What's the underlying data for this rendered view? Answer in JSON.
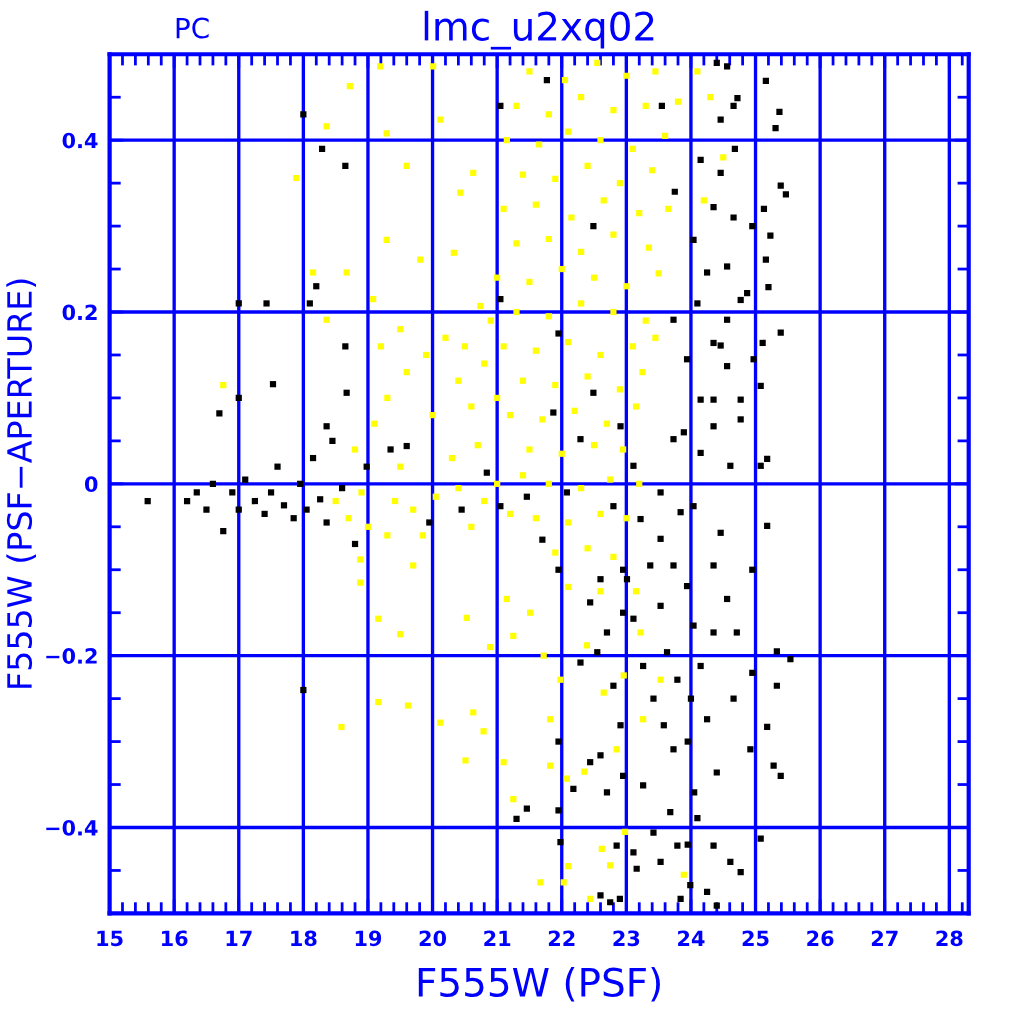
{
  "chart_data": {
    "type": "scatter",
    "title": "lmc_u2xq02",
    "xlabel": "F555W (PSF)",
    "ylabel": "F555W (PSF−APERTURE)",
    "annotations": [
      "PC"
    ],
    "marker": "square",
    "grid": true,
    "xlim": [
      15,
      28.3
    ],
    "ylim": [
      -0.5,
      0.5
    ],
    "xticks": [
      15,
      {
        "value": 15.2,
        "label": null
      },
      {
        "value": 15.4,
        "label": null
      },
      {
        "value": 15.6,
        "label": null
      },
      {
        "value": 15.8,
        "label": null
      },
      16,
      {
        "value": 16.2,
        "label": null
      },
      {
        "value": 16.4,
        "label": null
      },
      {
        "value": 16.6,
        "label": null
      },
      {
        "value": 16.8,
        "label": null
      },
      17,
      {
        "value": 17.2,
        "label": null
      },
      {
        "value": 17.4,
        "label": null
      },
      {
        "value": 17.6,
        "label": null
      },
      {
        "value": 17.8,
        "label": null
      },
      18,
      {
        "value": 18.2,
        "label": null
      },
      {
        "value": 18.4,
        "label": null
      },
      {
        "value": 18.6,
        "label": null
      },
      {
        "value": 18.8,
        "label": null
      },
      19,
      {
        "value": 19.2,
        "label": null
      },
      {
        "value": 19.4,
        "label": null
      },
      {
        "value": 19.6,
        "label": null
      },
      {
        "value": 19.8,
        "label": null
      },
      20,
      {
        "value": 20.2,
        "label": null
      },
      {
        "value": 20.4,
        "label": null
      },
      {
        "value": 20.6,
        "label": null
      },
      {
        "value": 20.8,
        "label": null
      },
      21,
      {
        "value": 21.2,
        "label": null
      },
      {
        "value": 21.4,
        "label": null
      },
      {
        "value": 21.6,
        "label": null
      },
      {
        "value": 21.8,
        "label": null
      },
      22,
      {
        "value": 22.2,
        "label": null
      },
      {
        "value": 22.4,
        "label": null
      },
      {
        "value": 22.6,
        "label": null
      },
      {
        "value": 22.8,
        "label": null
      },
      23,
      {
        "value": 23.2,
        "label": null
      },
      {
        "value": 23.4,
        "label": null
      },
      {
        "value": 23.6,
        "label": null
      },
      {
        "value": 23.8,
        "label": null
      },
      24,
      {
        "value": 24.2,
        "label": null
      },
      {
        "value": 24.4,
        "label": null
      },
      {
        "value": 24.6,
        "label": null
      },
      {
        "value": 24.8,
        "label": null
      },
      25,
      {
        "value": 25.2,
        "label": null
      },
      {
        "value": 25.4,
        "label": null
      },
      {
        "value": 25.6,
        "label": null
      },
      {
        "value": 25.8,
        "label": null
      },
      26,
      {
        "value": 26.2,
        "label": null
      },
      {
        "value": 26.4,
        "label": null
      },
      {
        "value": 26.6,
        "label": null
      },
      {
        "value": 26.8,
        "label": null
      },
      27,
      {
        "value": 27.2,
        "label": null
      },
      {
        "value": 27.4,
        "label": null
      },
      {
        "value": 27.6,
        "label": null
      },
      {
        "value": 27.8,
        "label": null
      },
      28,
      {
        "value": 28.2,
        "label": null
      }
    ],
    "yticks": [
      {
        "value": -0.45,
        "label": null
      },
      {
        "value": -0.4,
        "label": "−0.4"
      },
      {
        "value": -0.35,
        "label": null
      },
      {
        "value": -0.3,
        "label": null
      },
      {
        "value": -0.25,
        "label": null
      },
      {
        "value": -0.2,
        "label": "−0.2"
      },
      {
        "value": -0.15,
        "label": null
      },
      {
        "value": -0.1,
        "label": null
      },
      {
        "value": -0.05,
        "label": null
      },
      0,
      {
        "value": 0.05,
        "label": null
      },
      {
        "value": 0.1,
        "label": null
      },
      {
        "value": 0.15,
        "label": null
      },
      0.2,
      {
        "value": 0.25,
        "label": null
      },
      {
        "value": 0.3,
        "label": null
      },
      {
        "value": 0.35,
        "label": null
      },
      0.4,
      {
        "value": 0.45,
        "label": null
      }
    ],
    "series": [
      {
        "color": "#ffff00",
        "x": [
          18.5,
          18.7,
          18.9,
          19.0,
          19.3,
          19.42,
          19.7,
          19.85,
          20.05,
          20.4,
          20.6,
          20.8,
          21.0,
          21.2,
          21.4,
          19.5,
          20.3,
          20.7,
          18.8,
          19.1,
          19.3,
          19.6,
          19.9,
          20.2,
          20.5,
          20.8,
          19.5,
          20.0,
          20.6,
          19.2,
          20.9,
          20.4,
          21.0,
          18.36,
          18.72,
          19.29,
          19.6,
          20.12,
          20.43,
          20.33,
          19.81,
          19.29,
          19.08,
          18.67,
          18.36,
          20.74,
          20.63,
          20.01,
          19.19,
          18.15,
          17.89,
          16.76,
          21.5,
          22.05,
          22.55,
          23.0,
          23.45,
          24.1,
          21.3,
          21.8,
          22.3,
          22.8,
          23.3,
          23.8,
          24.3,
          21.15,
          21.65,
          22.1,
          22.6,
          23.1,
          23.6,
          21.4,
          21.9,
          22.4,
          22.9,
          23.4,
          24.5,
          21.1,
          21.6,
          22.15,
          22.65,
          23.2,
          23.65,
          24.2,
          21.3,
          21.8,
          22.3,
          22.8,
          23.35,
          21.0,
          21.5,
          22.0,
          22.5,
          23.0,
          23.5,
          21.3,
          21.8,
          22.3,
          22.8,
          23.3,
          21.1,
          21.6,
          22.1,
          22.6,
          23.1,
          23.45,
          21.4,
          21.9,
          22.4,
          22.9,
          23.25,
          21.2,
          21.7,
          22.2,
          22.7,
          23.15,
          21.5,
          22.0,
          22.5,
          22.95,
          21.8,
          22.3,
          22.75,
          23.2,
          21.6,
          22.1,
          22.6,
          23.0,
          21.9,
          22.4,
          22.8,
          22.1,
          22.6,
          23.15,
          22.03,
          22.1,
          22.62,
          22.75,
          22.44,
          23.89,
          21.67,
          22.98,
          22.35,
          22.85,
          22.08,
          21.82,
          21.98,
          21.82,
          22.65,
          22.96,
          23.26,
          22.39,
          23.22,
          23.53,
          21.1,
          21.25,
          21.51,
          21.72,
          18.59,
          19.16,
          19.62,
          20.12,
          20.63,
          20.79,
          20.51,
          19.5,
          19.16,
          18.88,
          20.53,
          20.89,
          21.15,
          21.25,
          18.88,
          19.7
        ],
        "values": [
          -0.02,
          -0.04,
          -0.01,
          -0.05,
          -0.06,
          -0.02,
          -0.03,
          -0.06,
          -0.015,
          -0.005,
          -0.05,
          -0.02,
          0.0,
          -0.035,
          0.01,
          0.02,
          0.03,
          0.045,
          0.04,
          0.07,
          0.1,
          0.13,
          0.15,
          0.17,
          0.16,
          0.14,
          0.18,
          0.08,
          0.09,
          0.16,
          0.19,
          0.12,
          0.1,
          0.416,
          0.463,
          0.408,
          0.37,
          0.424,
          0.339,
          0.269,
          0.261,
          0.284,
          0.215,
          0.246,
          0.191,
          0.207,
          0.362,
          0.486,
          0.486,
          0.246,
          0.356,
          0.115,
          0.48,
          0.47,
          0.49,
          0.475,
          0.48,
          0.48,
          0.44,
          0.43,
          0.45,
          0.435,
          0.44,
          0.445,
          0.45,
          0.4,
          0.395,
          0.41,
          0.4,
          0.39,
          0.405,
          0.36,
          0.355,
          0.37,
          0.35,
          0.365,
          0.38,
          0.32,
          0.325,
          0.31,
          0.33,
          0.315,
          0.32,
          0.33,
          0.28,
          0.285,
          0.27,
          0.29,
          0.275,
          0.24,
          0.235,
          0.25,
          0.24,
          0.23,
          0.245,
          0.2,
          0.195,
          0.21,
          0.2,
          0.19,
          0.16,
          0.155,
          0.165,
          0.15,
          0.16,
          0.17,
          0.12,
          0.115,
          0.125,
          0.11,
          0.13,
          0.08,
          0.075,
          0.085,
          0.07,
          0.09,
          0.04,
          0.035,
          0.045,
          0.04,
          0.0,
          -0.005,
          0.005,
          0.0,
          -0.04,
          -0.045,
          -0.035,
          -0.04,
          -0.08,
          -0.075,
          -0.085,
          -0.12,
          -0.125,
          -0.125,
          -0.464,
          -0.445,
          -0.425,
          -0.444,
          -0.483,
          -0.455,
          -0.464,
          -0.405,
          -0.335,
          -0.309,
          -0.343,
          -0.328,
          -0.228,
          -0.274,
          -0.243,
          -0.223,
          -0.274,
          -0.188,
          -0.173,
          -0.228,
          -0.324,
          -0.177,
          -0.15,
          -0.2,
          -0.283,
          -0.254,
          -0.258,
          -0.278,
          -0.266,
          -0.288,
          -0.322,
          -0.175,
          -0.157,
          -0.115,
          -0.156,
          -0.19,
          -0.134,
          -0.367,
          -0.088,
          -0.095
        ]
      },
      {
        "color": "#000000",
        "x": [
          15.59,
          16.2,
          16.35,
          16.5,
          16.6,
          16.76,
          16.9,
          17.0,
          17.1,
          17.25,
          17.4,
          17.5,
          17.6,
          17.7,
          17.85,
          17.95,
          18.05,
          18.15,
          18.26,
          18.36,
          18.6,
          18.8,
          18.98,
          18.45,
          18.36,
          18.67,
          16.7,
          17.0,
          17.53,
          17.43,
          17.0,
          18.0,
          18.29,
          18.65,
          18.1,
          18.2,
          18.65,
          18.0,
          19.35,
          19.6,
          19.95,
          20.45,
          20.84,
          21.05,
          21.46,
          21.7,
          22.08,
          22.29,
          22.49,
          21.87,
          21.05,
          21.05,
          21.77,
          22.49,
          21.95,
          24.04,
          24.15,
          24.35,
          23.73,
          23.53,
          23.22,
          23.11,
          23.94,
          24.25,
          24.46,
          24.56,
          23.73,
          24.04,
          24.46,
          24.15,
          24.66,
          24.35,
          22.8,
          22.91,
          25.18,
          25.08,
          24.77,
          24.97,
          24.87,
          25.08,
          25.16,
          25.37,
          25.31,
          25.39,
          25.47,
          25.13,
          25.23,
          25.16,
          25.2,
          25.39,
          25.11,
          25.18,
          24.56,
          24.72,
          24.4,
          24.46,
          24.68,
          24.66,
          24.56,
          24.77,
          24.35,
          24.56,
          24.77,
          24.35,
          24.61,
          24.1,
          24.15,
          23.89,
          23.75,
          23.55,
          25.39,
          25.28,
          25.54,
          25.33,
          25.33,
          25.18,
          25.08,
          24.92,
          24.77,
          24.61,
          24.66,
          24.71,
          24.56,
          24.35,
          24.46,
          24.25,
          24.4,
          24.35,
          24.25,
          24.4,
          24.1,
          24.05,
          23.84,
          23.99,
          23.79,
          23.68,
          23.53,
          23.42,
          23.26,
          23.16,
          23.11,
          22.9,
          22.75,
          22.6,
          22.6,
          22.44,
          22.7,
          22.85,
          22.18,
          21.98,
          21.46,
          21.3,
          22.29,
          22.55,
          22.7,
          22.44,
          22.6,
          22.95,
          23.11,
          23.26,
          23.42,
          23.58,
          23.73,
          23.79,
          23.63,
          23.53,
          23.73,
          23.94,
          24.04,
          24.15,
          24.0,
          24.35,
          23.53,
          23.01,
          23.37,
          23.84,
          22.8,
          22.91,
          21.95,
          21.95,
          21.95,
          22.95,
          22.95,
          23.95,
          23.95,
          24.95,
          24.95,
          24.95
        ],
        "values": [
          -0.02,
          -0.02,
          -0.01,
          -0.03,
          0.0,
          -0.055,
          -0.01,
          -0.03,
          0.005,
          -0.02,
          -0.035,
          -0.01,
          0.02,
          -0.025,
          -0.04,
          0.0,
          -0.03,
          0.03,
          -0.018,
          -0.045,
          -0.005,
          -0.07,
          0.02,
          0.05,
          0.067,
          0.106,
          0.082,
          0.1,
          0.116,
          0.21,
          0.21,
          0.43,
          0.39,
          0.37,
          0.21,
          0.23,
          0.16,
          -0.24,
          0.04,
          0.044,
          -0.045,
          -0.03,
          0.013,
          -0.026,
          -0.015,
          -0.065,
          -0.01,
          0.052,
          0.106,
          0.083,
          0.215,
          0.44,
          0.47,
          0.3,
          0.175,
          -0.026,
          0.036,
          0.098,
          0.052,
          -0.01,
          -0.041,
          0.021,
          0.145,
          0.246,
          0.161,
          0.191,
          0.191,
          0.284,
          0.362,
          0.377,
          0.44,
          0.322,
          -0.026,
          0.067,
          -0.049,
          0.021,
          0.075,
          0.145,
          0.222,
          0.114,
          0.469,
          0.433,
          0.414,
          0.347,
          0.337,
          0.32,
          0.289,
          0.261,
          0.229,
          0.176,
          0.164,
          0.029,
          0.486,
          0.449,
          0.49,
          0.424,
          0.39,
          0.31,
          0.253,
          0.214,
          0.164,
          0.137,
          0.098,
          0.067,
          0.021,
          0.21,
          0.098,
          0.06,
          0.34,
          0.44,
          -0.34,
          -0.328,
          -0.204,
          -0.195,
          -0.235,
          -0.283,
          -0.413,
          -0.309,
          -0.452,
          -0.44,
          -0.25,
          -0.173,
          -0.134,
          -0.095,
          -0.057,
          -0.274,
          -0.336,
          -0.421,
          -0.475,
          -0.491,
          -0.389,
          -0.359,
          -0.483,
          -0.467,
          -0.421,
          -0.382,
          -0.44,
          -0.406,
          -0.351,
          -0.448,
          -0.429,
          -0.483,
          -0.487,
          -0.479,
          -0.316,
          -0.324,
          -0.359,
          -0.421,
          -0.355,
          -0.417,
          -0.378,
          -0.39,
          -0.208,
          -0.196,
          -0.173,
          -0.138,
          -0.111,
          -0.1,
          -0.157,
          -0.212,
          -0.25,
          -0.281,
          -0.309,
          -0.228,
          -0.196,
          -0.142,
          -0.095,
          -0.119,
          -0.165,
          -0.212,
          -0.25,
          -0.173,
          -0.064,
          -0.111,
          -0.095,
          -0.033,
          -0.235,
          -0.281,
          -0.1,
          -0.3,
          -0.38,
          -0.15,
          -0.34,
          -0.3,
          -0.42,
          -0.1,
          -0.22,
          0.3
        ]
      }
    ]
  }
}
